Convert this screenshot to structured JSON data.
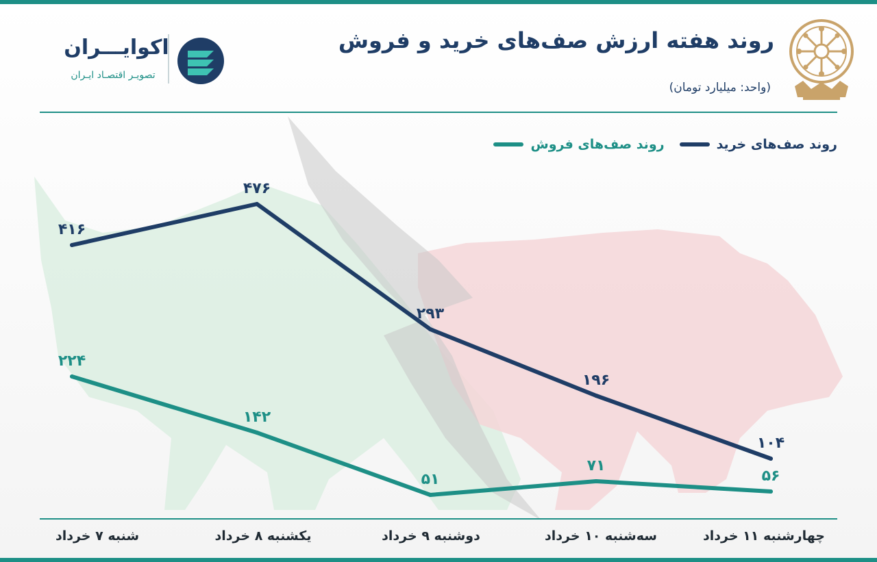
{
  "header": {
    "title": "روند هفته ارزش صف‌های خرید و فروش",
    "unit": "(واحد: میلیارد تومان)",
    "brand_name": "اکوایـــران",
    "brand_tagline": "تصویـر اقتصـاد ایـران"
  },
  "icons": {
    "emblem": "stock-exchange-emblem-icon",
    "brand_logo": "ecoiran-logo-icon"
  },
  "colors": {
    "buy": "#1f3d66",
    "sell": "#1d8f86",
    "accent": "#1d8f86",
    "emblem": "#c9a36a"
  },
  "chart_data": {
    "type": "line",
    "title": "روند هفته ارزش صف‌های خرید و فروش",
    "ylabel": "",
    "xlabel": "",
    "categories": [
      "شنبه ۷ خرداد",
      "یکشنبه ۸ خرداد",
      "دوشنبه ۹ خرداد",
      "سه‌شنبه ۱۰ خرداد",
      "چهارشنبه ۱۱ خرداد"
    ],
    "series": [
      {
        "name": "روند صف‌های خرید",
        "values": [
          416,
          476,
          293,
          196,
          104
        ],
        "labels": [
          "۴۱۶",
          "۴۷۶",
          "۲۹۳",
          "۱۹۶",
          "۱۰۴"
        ]
      },
      {
        "name": "روند صف‌های فروش",
        "values": [
          224,
          142,
          51,
          71,
          56
        ],
        "labels": [
          "۲۲۴",
          "۱۴۲",
          "۵۱",
          "۷۱",
          "۵۶"
        ]
      }
    ],
    "grid": false,
    "legend_position": "top-right"
  }
}
